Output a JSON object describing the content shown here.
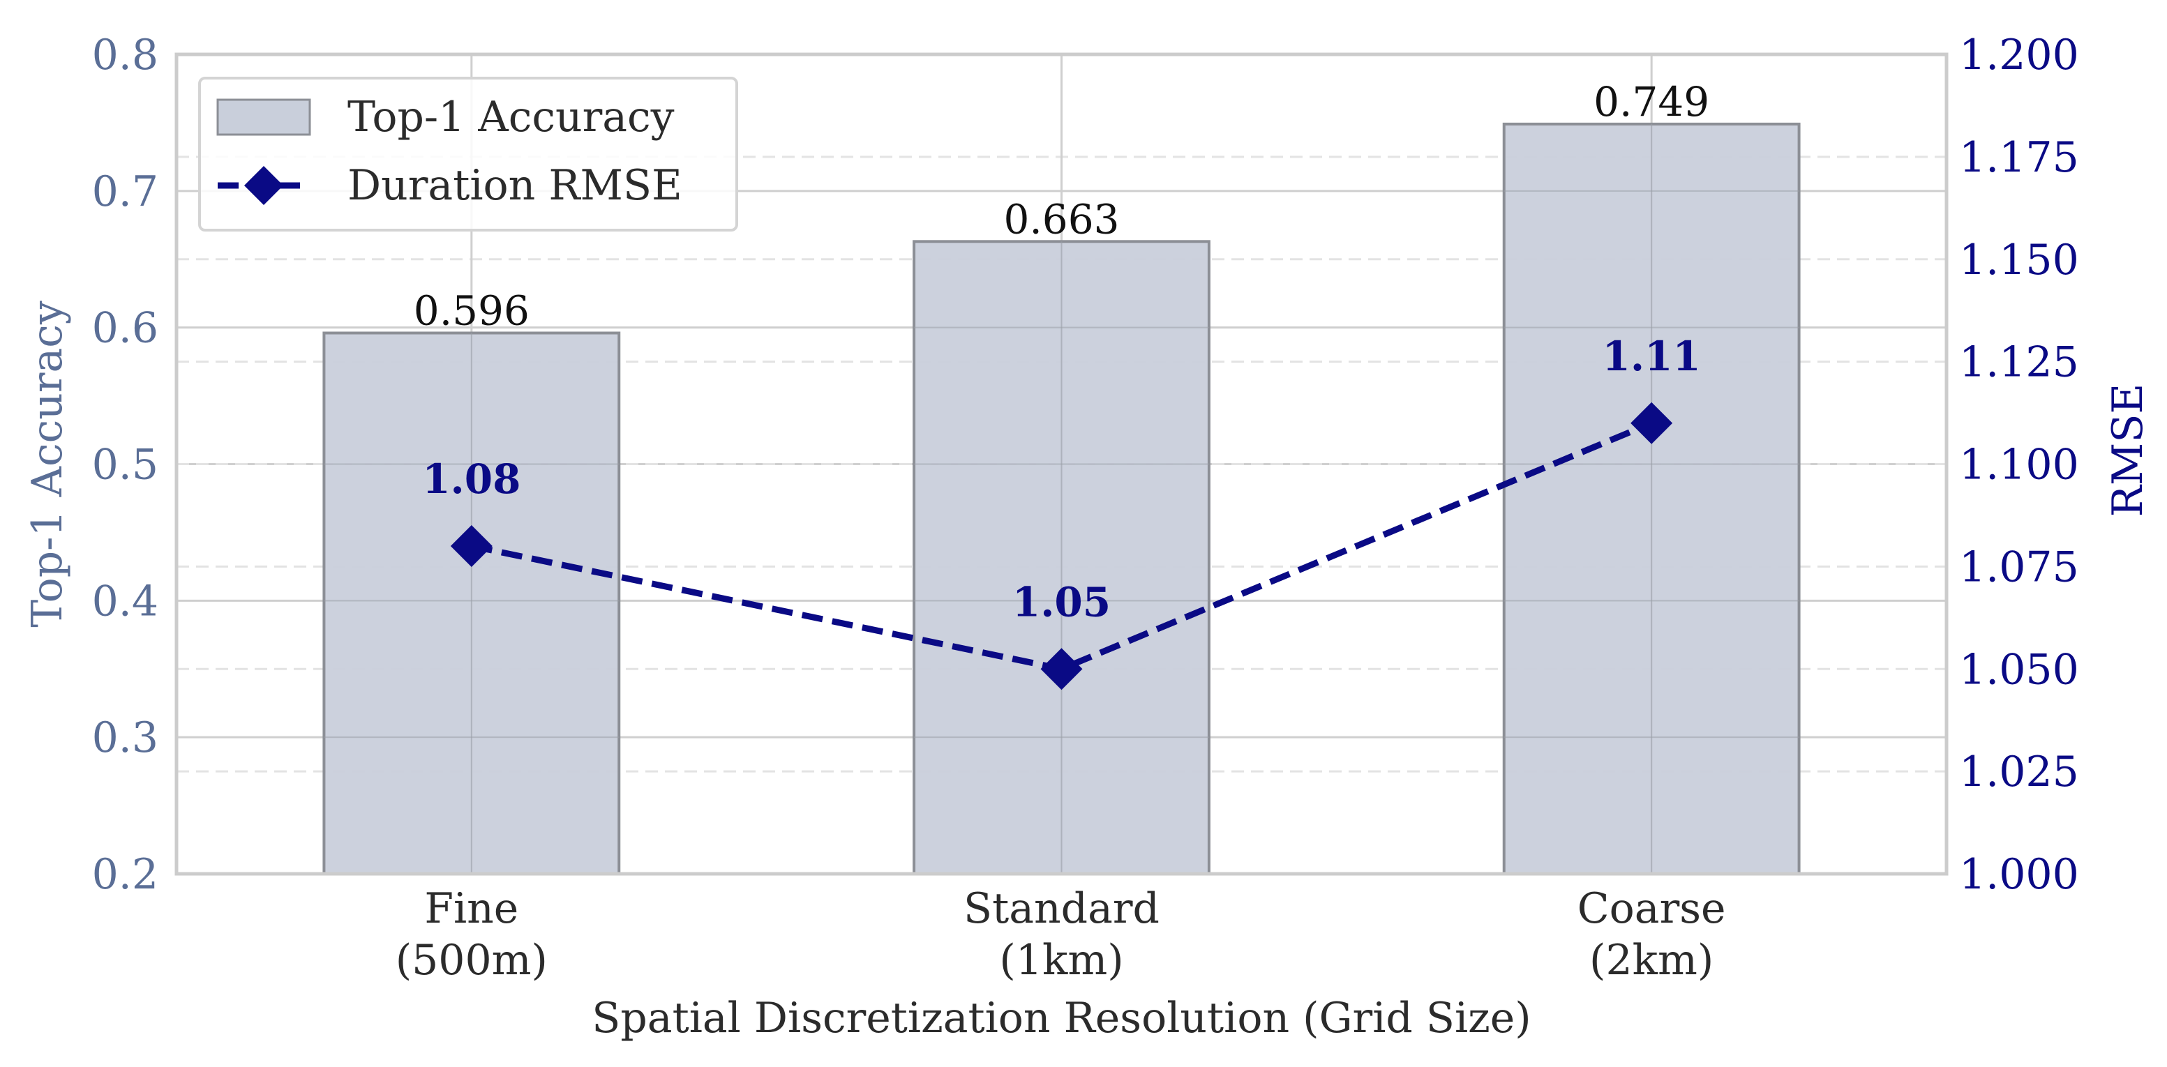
{
  "chart_data": {
    "type": "bar",
    "categories": [
      "Fine\n(500m)",
      "Standard\n(1km)",
      "Coarse\n(2km)"
    ],
    "xlabel": "Spatial Discretization Resolution (Grid Size)",
    "ylabel": "Top-1 Accuracy",
    "ylabel_right": "RMSE",
    "ylim": [
      0.2,
      0.8
    ],
    "ylim_right": [
      1.0,
      1.2
    ],
    "yticks": [
      "0.2",
      "0.3",
      "0.4",
      "0.5",
      "0.6",
      "0.7",
      "0.8"
    ],
    "yticks_right": [
      "1.000",
      "1.025",
      "1.050",
      "1.075",
      "1.100",
      "1.125",
      "1.150",
      "1.175",
      "1.200"
    ],
    "grid": true,
    "legend_position": "top-left",
    "series": [
      {
        "name": "Top-1 Accuracy",
        "type": "bar",
        "axis": "left",
        "values": [
          0.596,
          0.663,
          0.749
        ],
        "labels": [
          "0.596",
          "0.663",
          "0.749"
        ],
        "color": "#c9cfdb"
      },
      {
        "name": "Duration RMSE",
        "type": "line",
        "axis": "right",
        "values": [
          1.08,
          1.05,
          1.11
        ],
        "labels": [
          "1.08",
          "1.05",
          "1.11"
        ],
        "color": "#0a0a85",
        "line_style": "dashed",
        "marker": "diamond"
      }
    ]
  }
}
